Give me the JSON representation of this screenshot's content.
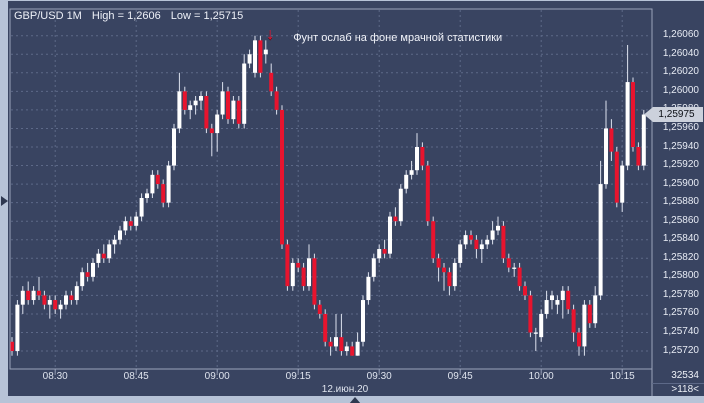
{
  "header": {
    "symbol": "GBP/USD 1M",
    "high": "High = 1,2606",
    "low": "Low = 1,25715"
  },
  "annotation": {
    "arrow": "↓",
    "text": "Фунт ослаб на фоне мрачной статистики",
    "bar": 48
  },
  "price_axis": {
    "last_price_label": "1,25975",
    "ticks": [
      {
        "value": 1.2606,
        "label": "1,26060"
      },
      {
        "value": 1.2604,
        "label": "1,26040"
      },
      {
        "value": 1.2602,
        "label": "1,26020"
      },
      {
        "value": 1.26,
        "label": "1,26000"
      },
      {
        "value": 1.2598,
        "label": "1,25980"
      },
      {
        "value": 1.2596,
        "label": "1,25960"
      },
      {
        "value": 1.2594,
        "label": "1,25940"
      },
      {
        "value": 1.2592,
        "label": "1,25920"
      },
      {
        "value": 1.259,
        "label": "1,25900"
      },
      {
        "value": 1.2588,
        "label": "1,25880"
      },
      {
        "value": 1.2586,
        "label": "1,25860"
      },
      {
        "value": 1.2584,
        "label": "1,25840"
      },
      {
        "value": 1.2582,
        "label": "1,25820"
      },
      {
        "value": 1.258,
        "label": "1,25800"
      },
      {
        "value": 1.2578,
        "label": "1,25780"
      },
      {
        "value": 1.2576,
        "label": "1,25760"
      },
      {
        "value": 1.2574,
        "label": "1,25740"
      },
      {
        "value": 1.2572,
        "label": "1,25720"
      }
    ]
  },
  "time_axis": {
    "ticks": [
      {
        "label": "08:30",
        "bar": 8
      },
      {
        "label": "08:45",
        "bar": 23
      },
      {
        "label": "09:00",
        "bar": 38
      },
      {
        "label": "09:15",
        "bar": 53
      },
      {
        "label": "09:30",
        "bar": 68
      },
      {
        "label": "09:45",
        "bar": 83
      },
      {
        "label": "10:00",
        "bar": 98
      },
      {
        "label": "10:15",
        "bar": 113
      }
    ],
    "date_label": "12.июн.20"
  },
  "corner": {
    "volume": "32534",
    "bar_count": ">118<"
  },
  "colors": {
    "background": "#394461",
    "grid": "#5d6988",
    "border": "#9aa4bb",
    "up": "#ffffff",
    "down": "#e8142e",
    "wick": "#dde2ef",
    "frame": "#b7c3d7",
    "badge_bg": "#ccd1dc",
    "text": "#eef1f8"
  },
  "chart_data": {
    "type": "candlestick",
    "title": "GBP/USD 1M",
    "symbol": "GBP/USD",
    "interval": "1M",
    "high": 1.2606,
    "low": 1.25715,
    "last": 1.25975,
    "bars_count": 118,
    "start_time": "08:22",
    "end_time": "10:19",
    "interval_minutes": 1,
    "ylim": [
      1.257,
      1.2607
    ],
    "ohlc": [
      [
        1.2573,
        1.25735,
        1.25715,
        1.2572
      ],
      [
        1.2572,
        1.25775,
        1.25715,
        1.2577
      ],
      [
        1.2577,
        1.2579,
        1.2576,
        1.25785
      ],
      [
        1.25785,
        1.25795,
        1.2577,
        1.25775
      ],
      [
        1.25775,
        1.2579,
        1.2577,
        1.25785
      ],
      [
        1.25785,
        1.258,
        1.25775,
        1.2578
      ],
      [
        1.2578,
        1.25785,
        1.25765,
        1.2577
      ],
      [
        1.2577,
        1.2578,
        1.25755,
        1.25775
      ],
      [
        1.25775,
        1.2578,
        1.2576,
        1.25765
      ],
      [
        1.25765,
        1.25775,
        1.25755,
        1.2577
      ],
      [
        1.2577,
        1.25785,
        1.25765,
        1.2578
      ],
      [
        1.2578,
        1.25785,
        1.2577,
        1.25775
      ],
      [
        1.25775,
        1.25795,
        1.2577,
        1.2579
      ],
      [
        1.2579,
        1.2581,
        1.25785,
        1.25805
      ],
      [
        1.25805,
        1.25815,
        1.25795,
        1.258
      ],
      [
        1.258,
        1.2582,
        1.25795,
        1.25815
      ],
      [
        1.25815,
        1.2583,
        1.2581,
        1.25825
      ],
      [
        1.25825,
        1.25835,
        1.25815,
        1.2582
      ],
      [
        1.2582,
        1.2584,
        1.25815,
        1.25835
      ],
      [
        1.25835,
        1.25845,
        1.25825,
        1.2584
      ],
      [
        1.2584,
        1.25855,
        1.25835,
        1.2585
      ],
      [
        1.2585,
        1.25865,
        1.25845,
        1.2586
      ],
      [
        1.2586,
        1.25865,
        1.2585,
        1.25855
      ],
      [
        1.25855,
        1.2587,
        1.2585,
        1.25865
      ],
      [
        1.25865,
        1.2589,
        1.2586,
        1.25885
      ],
      [
        1.25885,
        1.25895,
        1.2588,
        1.2589
      ],
      [
        1.2589,
        1.25915,
        1.25885,
        1.2591
      ],
      [
        1.2591,
        1.25915,
        1.25895,
        1.259
      ],
      [
        1.259,
        1.25905,
        1.25875,
        1.2588
      ],
      [
        1.2588,
        1.25925,
        1.25875,
        1.2592
      ],
      [
        1.2592,
        1.25965,
        1.25915,
        1.2596
      ],
      [
        1.2596,
        1.2602,
        1.25955,
        1.26
      ],
      [
        1.26,
        1.26005,
        1.25975,
        1.2598
      ],
      [
        1.2598,
        1.2599,
        1.2597,
        1.25985
      ],
      [
        1.25985,
        1.25995,
        1.25975,
        1.2599
      ],
      [
        1.2599,
        1.26,
        1.2598,
        1.25995
      ],
      [
        1.25995,
        1.26,
        1.25955,
        1.2596
      ],
      [
        1.2596,
        1.25965,
        1.2593,
        1.25955
      ],
      [
        1.25955,
        1.2598,
        1.25935,
        1.25975
      ],
      [
        1.25975,
        1.2601,
        1.2597,
        1.26
      ],
      [
        1.26,
        1.26005,
        1.25965,
        1.2597
      ],
      [
        1.2597,
        1.25995,
        1.25965,
        1.2599
      ],
      [
        1.2599,
        1.25995,
        1.2596,
        1.25965
      ],
      [
        1.25965,
        1.2604,
        1.2596,
        1.2603
      ],
      [
        1.2603,
        1.26045,
        1.26025,
        1.2604
      ],
      [
        1.2602,
        1.2606,
        1.26015,
        1.26055
      ],
      [
        1.26055,
        1.2606,
        1.26015,
        1.2602
      ],
      [
        1.2604,
        1.26055,
        1.2603,
        1.26045
      ],
      [
        1.2602,
        1.2603,
        1.25995,
        1.26
      ],
      [
        1.26,
        1.26005,
        1.25975,
        1.2598
      ],
      [
        1.2598,
        1.25985,
        1.2583,
        1.25835
      ],
      [
        1.25835,
        1.2584,
        1.25785,
        1.2579
      ],
      [
        1.2579,
        1.2582,
        1.25785,
        1.25815
      ],
      [
        1.25815,
        1.2582,
        1.25805,
        1.2581
      ],
      [
        1.2581,
        1.25815,
        1.25785,
        1.2579
      ],
      [
        1.2579,
        1.25835,
        1.25785,
        1.2582
      ],
      [
        1.2582,
        1.25825,
        1.25765,
        1.2577
      ],
      [
        1.2577,
        1.25775,
        1.25755,
        1.2576
      ],
      [
        1.2576,
        1.25765,
        1.25725,
        1.2573
      ],
      [
        1.2573,
        1.25735,
        1.25715,
        1.25725
      ],
      [
        1.25725,
        1.2576,
        1.2572,
        1.25735
      ],
      [
        1.25735,
        1.2576,
        1.25715,
        1.2572
      ],
      [
        1.2572,
        1.2573,
        1.25715,
        1.25725
      ],
      [
        1.25725,
        1.2573,
        1.25715,
        1.25715
      ],
      [
        1.25715,
        1.2574,
        1.25715,
        1.2573
      ],
      [
        1.2573,
        1.2578,
        1.25725,
        1.25775
      ],
      [
        1.25775,
        1.25805,
        1.2577,
        1.258
      ],
      [
        1.258,
        1.25825,
        1.25795,
        1.2582
      ],
      [
        1.2582,
        1.25835,
        1.25815,
        1.2583
      ],
      [
        1.2583,
        1.2584,
        1.2582,
        1.25825
      ],
      [
        1.25825,
        1.2587,
        1.2582,
        1.25865
      ],
      [
        1.25865,
        1.25875,
        1.25855,
        1.2586
      ],
      [
        1.2586,
        1.259,
        1.25855,
        1.25895
      ],
      [
        1.25895,
        1.25915,
        1.2589,
        1.2591
      ],
      [
        1.2591,
        1.25925,
        1.25905,
        1.25915
      ],
      [
        1.25915,
        1.25955,
        1.2591,
        1.2594
      ],
      [
        1.2594,
        1.25945,
        1.25915,
        1.2592
      ],
      [
        1.2592,
        1.25925,
        1.25855,
        1.2586
      ],
      [
        1.2586,
        1.25865,
        1.25815,
        1.2582
      ],
      [
        1.2582,
        1.25825,
        1.25795,
        1.2581
      ],
      [
        1.2581,
        1.25815,
        1.25785,
        1.25805
      ],
      [
        1.25805,
        1.2581,
        1.2578,
        1.2579
      ],
      [
        1.2579,
        1.2582,
        1.25785,
        1.25815
      ],
      [
        1.25815,
        1.2584,
        1.2581,
        1.25835
      ],
      [
        1.25835,
        1.2585,
        1.2583,
        1.25845
      ],
      [
        1.25845,
        1.2585,
        1.25835,
        1.2584
      ],
      [
        1.2584,
        1.25845,
        1.2582,
        1.2583
      ],
      [
        1.2583,
        1.2584,
        1.25815,
        1.25835
      ],
      [
        1.25835,
        1.25845,
        1.2583,
        1.2584
      ],
      [
        1.2584,
        1.2586,
        1.25835,
        1.2585
      ],
      [
        1.2585,
        1.25865,
        1.25845,
        1.25855
      ],
      [
        1.25855,
        1.2586,
        1.25815,
        1.2582
      ],
      [
        1.2582,
        1.25825,
        1.25805,
        1.2581
      ],
      [
        1.2581,
        1.25815,
        1.258,
        1.2581
      ],
      [
        1.2581,
        1.25815,
        1.25785,
        1.2579
      ],
      [
        1.2579,
        1.25795,
        1.25775,
        1.2578
      ],
      [
        1.2578,
        1.25785,
        1.25735,
        1.2574
      ],
      [
        1.2574,
        1.25745,
        1.2572,
        1.2574
      ],
      [
        1.25735,
        1.25765,
        1.2573,
        1.2576
      ],
      [
        1.2576,
        1.25785,
        1.25755,
        1.25775
      ],
      [
        1.25775,
        1.25785,
        1.25765,
        1.2578
      ],
      [
        1.2577,
        1.2578,
        1.2576,
        1.25775
      ],
      [
        1.25775,
        1.2579,
        1.25755,
        1.25785
      ],
      [
        1.25785,
        1.2579,
        1.2576,
        1.25765
      ],
      [
        1.25765,
        1.2577,
        1.2573,
        1.2574
      ],
      [
        1.2574,
        1.25745,
        1.25715,
        1.25725
      ],
      [
        1.25725,
        1.25775,
        1.25715,
        1.2577
      ],
      [
        1.2577,
        1.25775,
        1.25745,
        1.2575
      ],
      [
        1.2575,
        1.2579,
        1.25745,
        1.2578
      ],
      [
        1.2578,
        1.25925,
        1.25775,
        1.259
      ],
      [
        1.259,
        1.2599,
        1.25895,
        1.2596
      ],
      [
        1.2596,
        1.2597,
        1.25925,
        1.25935
      ],
      [
        1.25935,
        1.2594,
        1.25875,
        1.2588
      ],
      [
        1.2588,
        1.25925,
        1.2587,
        1.2592
      ],
      [
        1.2592,
        1.2605,
        1.25915,
        1.2601
      ],
      [
        1.2601,
        1.26015,
        1.25935,
        1.2594
      ],
      [
        1.2594,
        1.25945,
        1.25915,
        1.2592
      ],
      [
        1.2592,
        1.2598,
        1.25915,
        1.25975
      ]
    ]
  }
}
